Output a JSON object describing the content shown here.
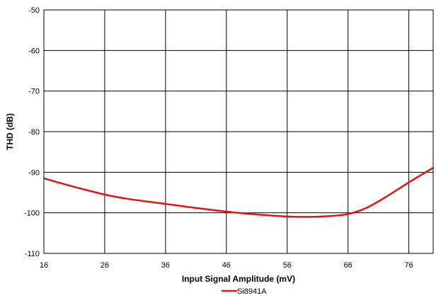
{
  "chart_data": {
    "type": "line",
    "title": "",
    "xlabel": "Input Signal Amplitude (mV)",
    "ylabel": "THD (dB)",
    "xlim": [
      16,
      80
    ],
    "ylim": [
      -110,
      -50
    ],
    "x_ticks": [
      16,
      26,
      36,
      46,
      56,
      66,
      76
    ],
    "y_ticks": [
      -50,
      -60,
      -70,
      -80,
      -90,
      -100,
      -110
    ],
    "grid": true,
    "legend_position": "bottom-center",
    "series": [
      {
        "name": "Si8941A",
        "color": "#e8100f",
        "points": [
          [
            16,
            -91.5
          ],
          [
            20,
            -93.2
          ],
          [
            26,
            -95.5
          ],
          [
            30,
            -96.6
          ],
          [
            36,
            -97.8
          ],
          [
            41,
            -98.8
          ],
          [
            46,
            -99.7
          ],
          [
            51,
            -100.4
          ],
          [
            56,
            -100.9
          ],
          [
            60,
            -101.0
          ],
          [
            63,
            -100.8
          ],
          [
            66,
            -100.3
          ],
          [
            69,
            -98.8
          ],
          [
            72,
            -96.3
          ],
          [
            76,
            -92.5
          ],
          [
            80,
            -88.9
          ]
        ]
      }
    ]
  }
}
